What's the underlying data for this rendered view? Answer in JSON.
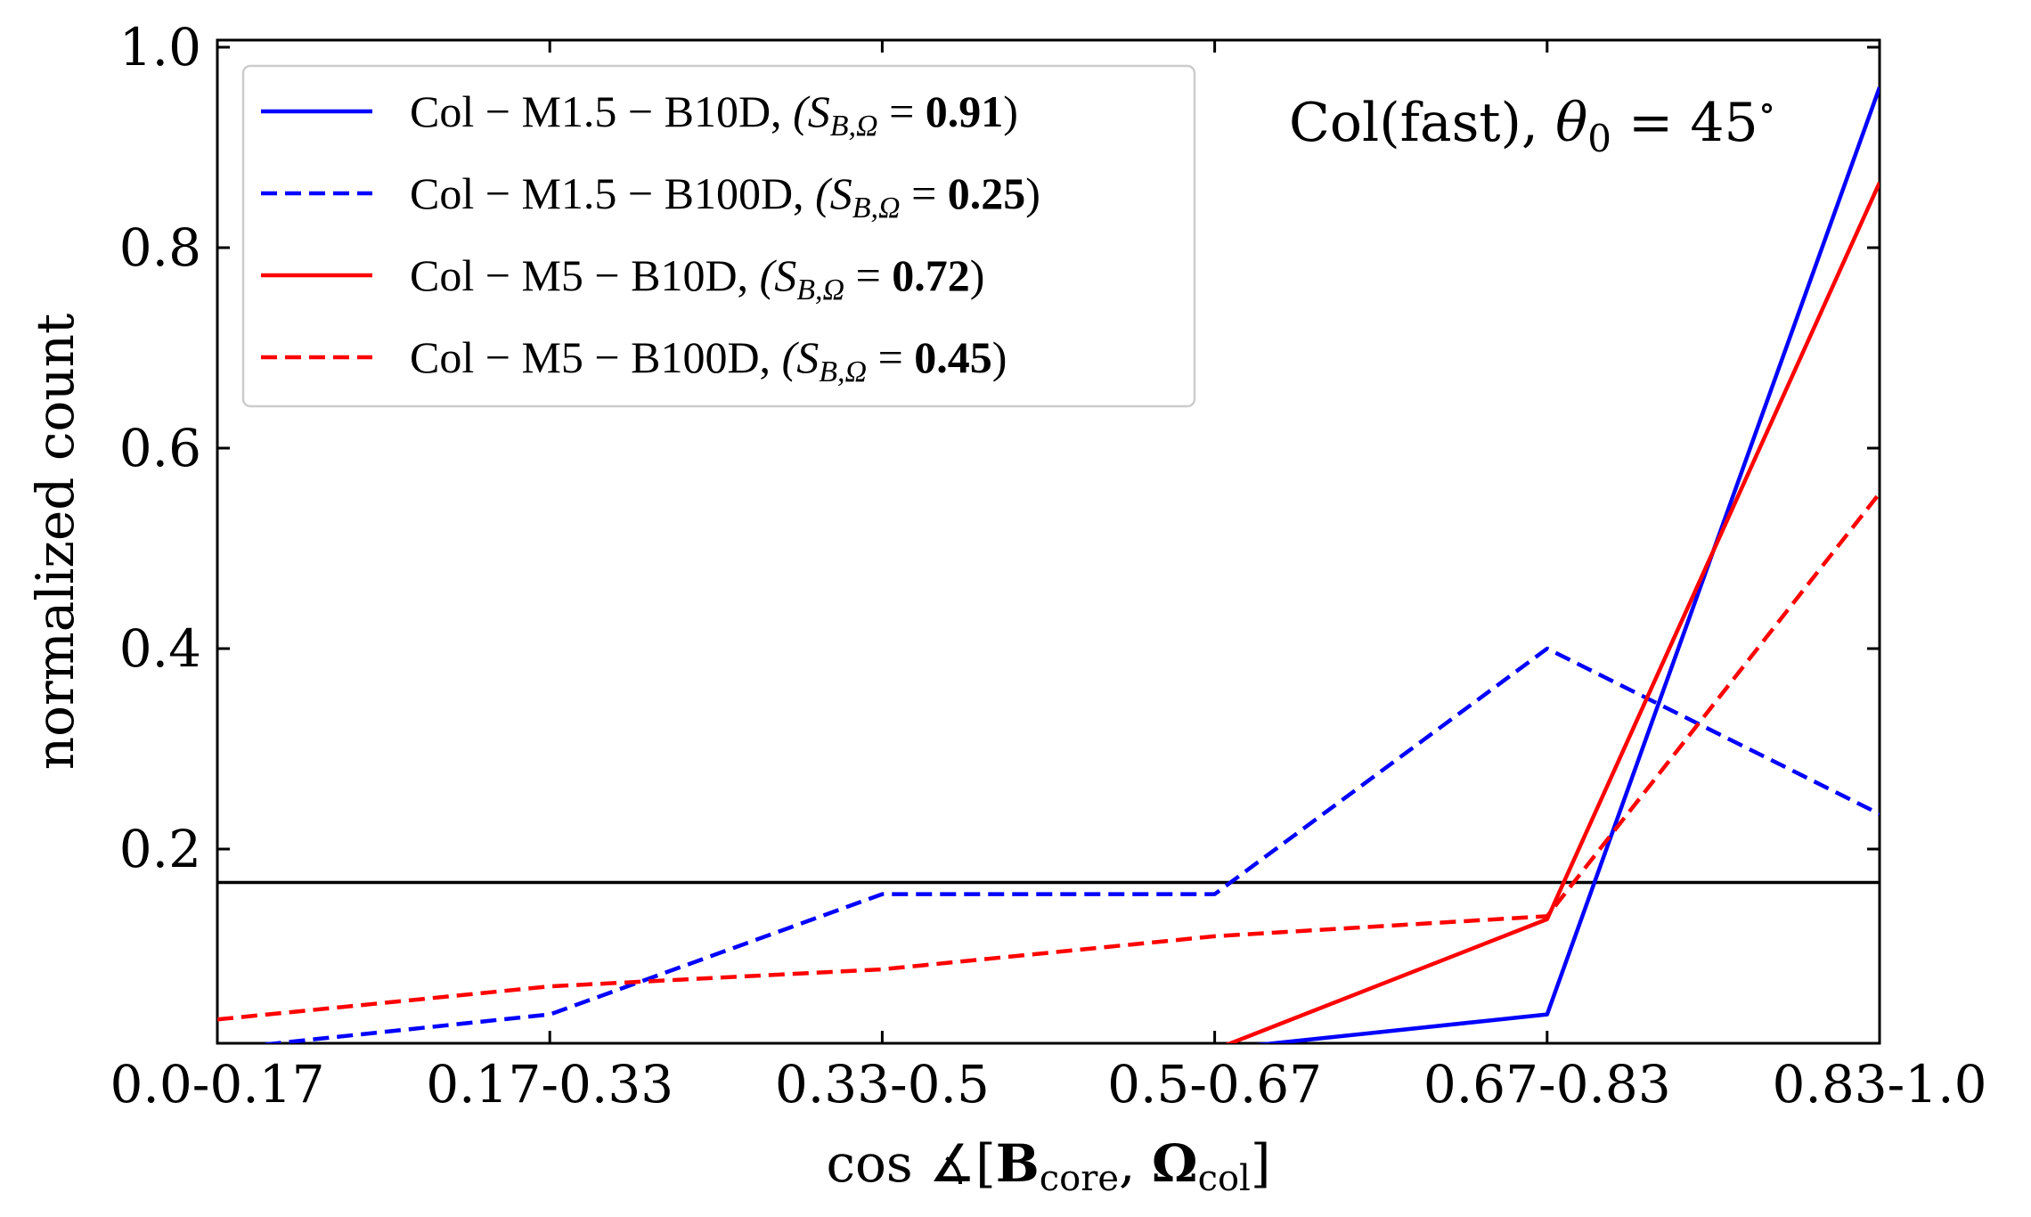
{
  "chart_data": {
    "type": "line",
    "categories": [
      "0.0-0.17",
      "0.17-0.33",
      "0.33-0.5",
      "0.5-0.67",
      "0.67-0.83",
      "0.83-1.0"
    ],
    "x": [
      0,
      1,
      2,
      3,
      4,
      5
    ],
    "ylim": [
      0,
      1.0
    ],
    "yticks": [
      "0.2",
      "0.4",
      "0.6",
      "0.8",
      "1.0"
    ],
    "ytick_values": [
      0.2,
      0.4,
      0.6,
      0.8,
      1.0
    ],
    "xlabel_parts": {
      "prefix": "cos ∡[",
      "b": "B",
      "b_sub": "core",
      "sep": ", ",
      "omega": "Ω",
      "omega_sub": "col",
      "suffix": "]"
    },
    "ylabel": "normalized count",
    "annotation": {
      "prefix": "Col(fast), ",
      "theta": "θ",
      "theta_sub": "0",
      "eq": " = 45",
      "deg": "∘"
    },
    "reference_line": {
      "y": 0.1667,
      "color": "#000000"
    },
    "legend_position": "upper-left",
    "grid": false,
    "series": [
      {
        "name": "Col − M1.5 − B10D,",
        "s_prefix": "(S",
        "s_sub": "B,Ω",
        "s_eq": " = ",
        "s_value": "0.91",
        "s_close": ")",
        "color": "#0000ff",
        "dash": "solid",
        "values": [
          -0.02,
          -0.02,
          -0.02,
          0.0,
          0.035,
          0.96
        ]
      },
      {
        "name": "Col − M1.5 − B100D,",
        "s_prefix": "(S",
        "s_sub": "B,Ω",
        "s_eq": " = ",
        "s_value": "0.25",
        "s_close": ")",
        "color": "#0000ff",
        "dash": "dashed",
        "values": [
          0.0,
          0.035,
          0.155,
          0.155,
          0.4,
          0.235
        ]
      },
      {
        "name": "Col − M5 − B10D,",
        "s_prefix": "(S",
        "s_sub": "B,Ω",
        "s_eq": " = ",
        "s_value": "0.72",
        "s_close": ")",
        "color": "#ff0000",
        "dash": "solid",
        "values": [
          -0.02,
          -0.02,
          -0.02,
          0.0,
          0.13,
          0.865
        ]
      },
      {
        "name": "Col − M5 − B100D,",
        "s_prefix": "(S",
        "s_sub": "B,Ω",
        "s_eq": " = ",
        "s_value": "0.45",
        "s_close": ")",
        "color": "#ff0000",
        "dash": "dashed",
        "values": [
          0.03,
          0.063,
          0.08,
          0.113,
          0.133,
          0.555
        ]
      }
    ]
  }
}
